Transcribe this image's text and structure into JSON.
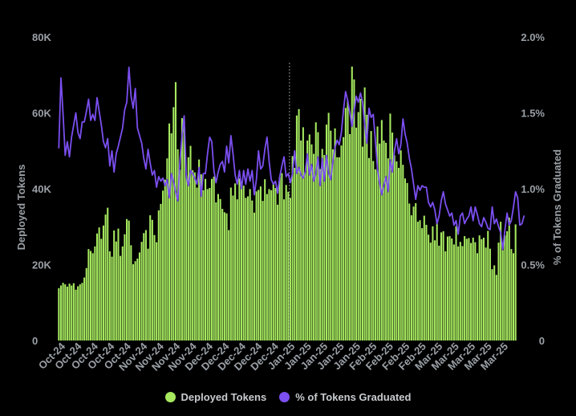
{
  "chart_data": {
    "type": "bar",
    "title": "",
    "xlabel": "",
    "ylabel": "Deployed Tokens",
    "ylabel_right": "% of Tokens Graduated",
    "ylim": [
      0,
      80000
    ],
    "ylim_right": [
      0,
      2.0
    ],
    "yticks_left": [
      "0",
      "20K",
      "40K",
      "60K",
      "80K"
    ],
    "yticks_right": [
      "0",
      "0.5%",
      "1.0%",
      "1.5%",
      "2.0%"
    ],
    "grid": false,
    "legend_position": "bottom",
    "marker_label": "Dec-24",
    "x_tick_labels": [
      "Oct-24",
      "Oct-24",
      "Oct-24",
      "Oct-24",
      "Oct-24",
      "Nov-24",
      "Nov-24",
      "Nov-24",
      "Nov-24",
      "Dec-24",
      "Dec-24",
      "Dec-24",
      "Dec-24",
      "Dec-24",
      "Jan-25",
      "Jan-25",
      "Jan-25",
      "Jan-25",
      "Jan-25",
      "Feb-25",
      "Feb-25",
      "Feb-25",
      "Feb-25",
      "Mar-25",
      "Mar-25",
      "Mar-25",
      "Mar-25",
      "Mar-25"
    ],
    "series": [
      {
        "name": "Deployed Tokens",
        "type": "bar",
        "axis": "left",
        "values": [
          13800,
          14500,
          15200,
          14800,
          14200,
          15000,
          14500,
          15100,
          13400,
          14300,
          14800,
          15200,
          16600,
          19100,
          24100,
          23600,
          23000,
          24800,
          28200,
          29800,
          26800,
          30300,
          33200,
          35000,
          23500,
          22100,
          29000,
          26100,
          29500,
          22300,
          24800,
          28000,
          32000,
          31600,
          25100,
          20100,
          20900,
          21600,
          23200,
          26000,
          28300,
          29100,
          24200,
          33000,
          31800,
          27800,
          25900,
          34300,
          36000,
          39500,
          42400,
          48000,
          57200,
          54600,
          61500,
          68100,
          50400,
          45000,
          58600,
          57800,
          43500,
          48300,
          51300,
          44900,
          44300,
          40300,
          47700,
          43800,
          39600,
          42600,
          39900,
          40200,
          42600,
          43200,
          36400,
          38600,
          37300,
          34700,
          33800,
          33500,
          29100,
          40300,
          38200,
          41400,
          37200,
          42700,
          41900,
          40800,
          37600,
          38000,
          39900,
          36900,
          33700,
          39300,
          39700,
          40600,
          36800,
          42500,
          38600,
          39900,
          39600,
          41300,
          40200,
          35800,
          43100,
          44100,
          37200,
          41000,
          39200,
          37600,
          48600,
          45500,
          59300,
          61000,
          52700,
          56200,
          44400,
          52700,
          54300,
          51700,
          49200,
          57500,
          54900,
          45200,
          50500,
          48900,
          56900,
          60000,
          55300,
          50400,
          55900,
          48300,
          48300,
          51400,
          53600,
          61300,
          63300,
          54400,
          72200,
          68800,
          56100,
          60200,
          63700,
          51100,
          66700,
          59500,
          48100,
          55200,
          47300,
          45100,
          56400,
          51900,
          58100,
          52700,
          52100,
          48000,
          59800,
          54800,
          48800,
          47200,
          45500,
          50100,
          46300,
          42700,
          41500,
          36100,
          33000,
          35300,
          36200,
          31300,
          31700,
          29600,
          32900,
          30500,
          27900,
          25800,
          30100,
          26400,
          31500,
          25000,
          28500,
          28800,
          23500,
          27400,
          27500,
          26900,
          25300,
          30100,
          24800,
          26000,
          24900,
          27500,
          26800,
          27000,
          25700,
          27100,
          25900,
          23000,
          27700,
          26700,
          27100,
          24500,
          28900,
          24200,
          18800,
          19800,
          17300,
          25800,
          31300,
          23800,
          27700,
          28800,
          32400,
          24100,
          23000,
          30600
        ]
      },
      {
        "name": "% of Tokens Graduated",
        "type": "line",
        "axis": "right",
        "values": [
          1.27,
          1.73,
          1.49,
          1.22,
          1.31,
          1.21,
          1.34,
          1.42,
          1.5,
          1.37,
          1.33,
          1.44,
          1.44,
          1.51,
          1.59,
          1.45,
          1.49,
          1.45,
          1.6,
          1.51,
          1.42,
          1.31,
          1.27,
          1.33,
          1.15,
          1.25,
          1.11,
          1.23,
          1.28,
          1.34,
          1.4,
          1.52,
          1.57,
          1.8,
          1.61,
          1.53,
          1.66,
          1.4,
          1.35,
          1.3,
          1.2,
          1.13,
          1.26,
          1.17,
          1.09,
          1.12,
          1.01,
          1.08,
          1.05,
          1.07,
          1.02,
          1.06,
          0.94,
          1.1,
          1.05,
          0.98,
          0.92,
          1.18,
          1.35,
          1.48,
          1.08,
          1.02,
          1.12,
          1.1,
          1.07,
          1.03,
          1.14,
          0.95,
          1.1,
          1.1,
          1.23,
          1.34,
          1.31,
          1.12,
          1.04,
          1.11,
          1.16,
          1.18,
          1.11,
          1.28,
          1.17,
          1.35,
          1.23,
          1.09,
          1.03,
          1.12,
          1.0,
          1.12,
          1.03,
          1.13,
          1.05,
          1.12,
          0.96,
          1.06,
          1.25,
          1.13,
          1.15,
          1.26,
          1.34,
          1.18,
          1.06,
          1.03,
          1.05,
          0.97,
          1.08,
          1.15,
          1.21,
          1.08,
          1.1,
          1.04,
          1.1,
          1.25,
          1.1,
          1.14,
          1.09,
          1.07,
          1.11,
          1.23,
          1.09,
          1.16,
          1.05,
          1.1,
          1.21,
          1.02,
          1.2,
          1.05,
          1.22,
          1.1,
          1.06,
          1.18,
          1.27,
          1.32,
          1.29,
          1.37,
          1.52,
          1.64,
          1.58,
          1.5,
          1.41,
          1.51,
          1.61,
          1.57,
          1.63,
          1.57,
          1.42,
          1.3,
          1.53,
          1.47,
          1.49,
          1.32,
          1.13,
          1.04,
          0.96,
          1.02,
          1.08,
          0.98,
          1.19,
          1.11,
          1.25,
          1.33,
          1.23,
          1.29,
          1.46,
          1.36,
          1.3,
          1.2,
          1.13,
          1.03,
          0.93,
          1.02,
          0.99,
          1.02,
          1.01,
          1.01,
          0.91,
          0.88,
          0.91,
          0.86,
          0.77,
          0.82,
          0.92,
          0.98,
          0.9,
          0.86,
          0.82,
          0.84,
          0.76,
          0.79,
          0.7,
          0.82,
          0.84,
          0.77,
          0.8,
          0.82,
          0.88,
          0.79,
          0.88,
          0.83,
          0.77,
          0.75,
          0.81,
          0.78,
          0.74,
          0.73,
          0.88,
          0.77,
          0.8,
          0.75,
          0.71,
          0.6,
          0.73,
          0.84,
          0.76,
          0.79,
          0.88,
          0.98,
          0.94,
          0.76,
          0.77,
          0.82
        ]
      }
    ]
  },
  "legend": {
    "items": [
      {
        "label": "Deployed Tokens",
        "color": "#a6e95f"
      },
      {
        "label": "% of Tokens Graduated",
        "color": "#7b4ff0"
      }
    ]
  },
  "colors": {
    "background": "#000000",
    "bar": "#a6e95f",
    "line": "#7b4ff0",
    "axis_text": "#9aa0a6",
    "marker": "#8a8f95"
  }
}
